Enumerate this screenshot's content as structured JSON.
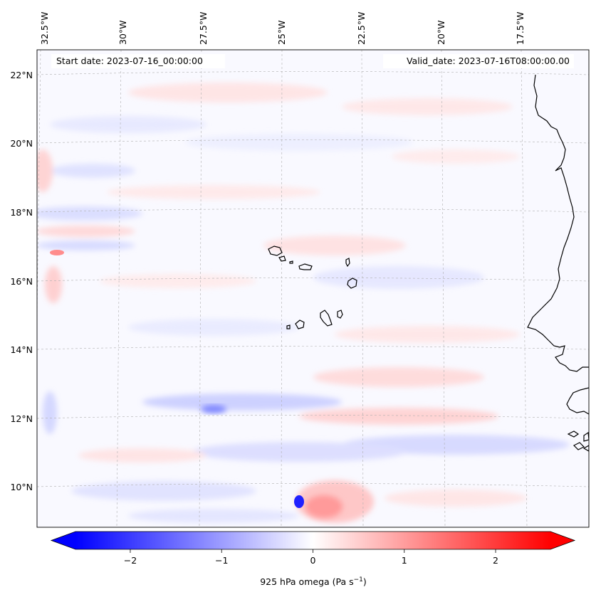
{
  "map": {
    "start_date_label": "Start date: 2023-07-16_00:00:00",
    "valid_date_label": "Valid_date: 2023-07-16T08:00:00.00",
    "lon_ticks": [
      "32.5°W",
      "30°W",
      "27.5°W",
      "25°W",
      "22.5°W",
      "20°W",
      "17.5°W"
    ],
    "lat_ticks": [
      "22°N",
      "20°N",
      "18°N",
      "16°N",
      "14°N",
      "12°N",
      "10°N"
    ],
    "colors": {
      "negative": "#0000ff",
      "neutral": "#ffffff",
      "positive": "#ff0000",
      "coastline": "#000000",
      "grid": "#b0b0b0"
    }
  },
  "colorbar": {
    "ticks": [
      "−2",
      "−1",
      "0",
      "1",
      "2"
    ],
    "tick_values": [
      -2,
      -1,
      0,
      1,
      2
    ],
    "range": [
      -2.6,
      2.6
    ],
    "label_main": "925 hPa omega (Pa s",
    "label_exp": "−1",
    "label_close": ")"
  }
}
